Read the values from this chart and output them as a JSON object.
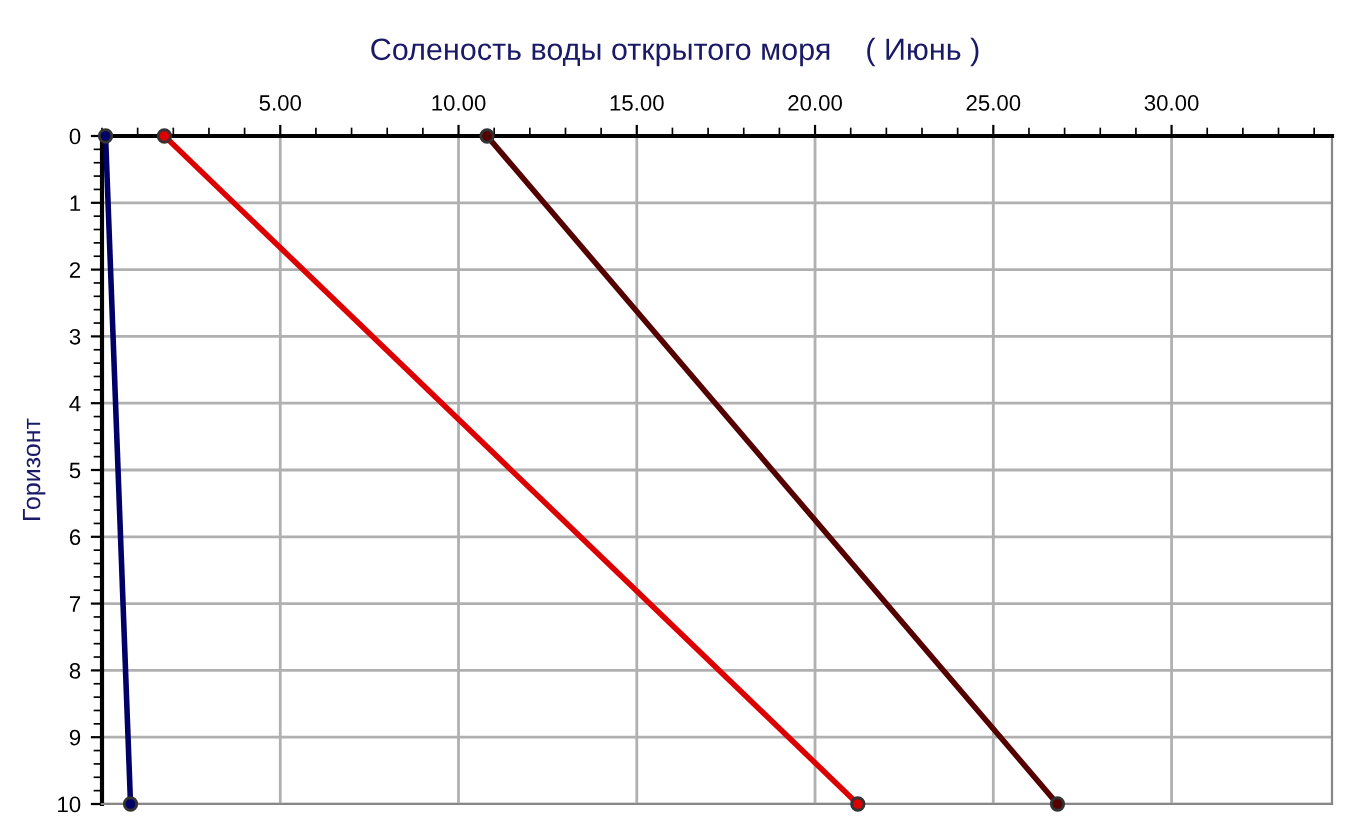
{
  "chart_data": {
    "type": "line",
    "title": "Соленость воды открытого моря    ( Июнь )",
    "ylabel": "Горизонт",
    "series": [
      {
        "color": "#000066",
        "x": [
          0.1,
          0.8
        ],
        "values": [
          0,
          10
        ]
      },
      {
        "color": "#dd0000",
        "x": [
          1.75,
          21.2
        ],
        "values": [
          0,
          10
        ]
      },
      {
        "color": "#550000",
        "x": [
          10.8,
          26.8
        ],
        "values": [
          0,
          10
        ]
      }
    ],
    "xlim": [
      0,
      34.5
    ],
    "xticks": [
      {
        "value": 5,
        "label": "5.00"
      },
      {
        "value": 10,
        "label": "10.00"
      },
      {
        "value": 15,
        "label": "15.00"
      },
      {
        "value": 20,
        "label": "20.00"
      },
      {
        "value": 25,
        "label": "25.00"
      },
      {
        "value": 30,
        "label": "30.00"
      }
    ],
    "ylim": [
      10,
      0
    ],
    "yticks": [
      0,
      1,
      2,
      3,
      4,
      5,
      6,
      7,
      8,
      9,
      10
    ],
    "grid": true,
    "marker": "circle",
    "line_style": "solid"
  }
}
